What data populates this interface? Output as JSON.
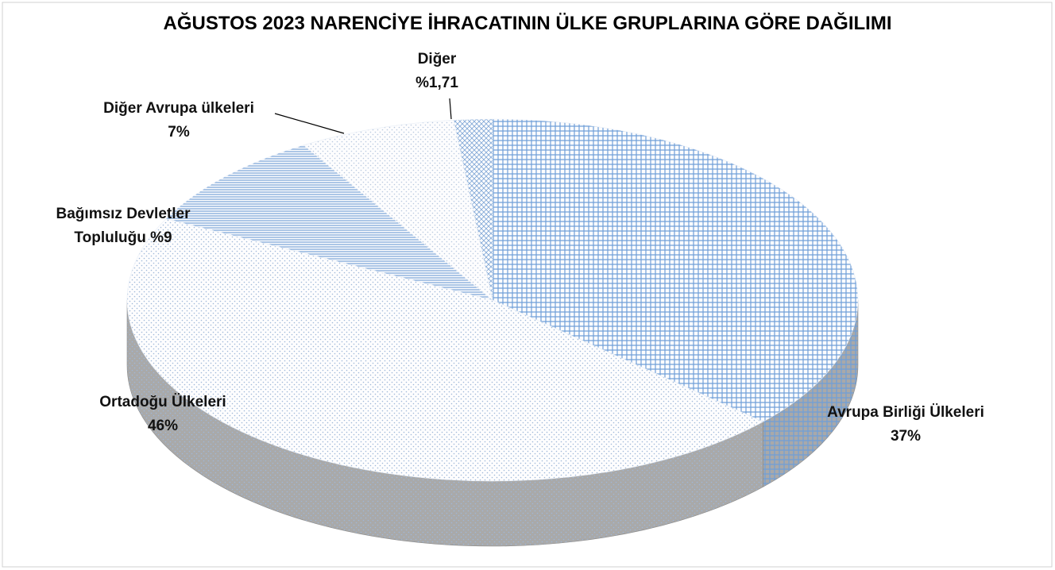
{
  "chart_data": {
    "type": "pie",
    "title": "AĞUSTOS 2023 NARENCİYE İHRACATININ ÜLKE GRUPLARINA GÖRE DAĞILIMI",
    "categories": [
      "Avrupa Birliği Ülkeleri",
      "Ortadoğu Ülkeleri",
      "Bağımsız Devletler Topluluğu",
      "Diğer Avrupa ülkeleri",
      "Diğer"
    ],
    "values": [
      37,
      46,
      9,
      7,
      1.71
    ],
    "value_labels": [
      "37%",
      "46%",
      "%9",
      "7%",
      "%1,71"
    ],
    "colors": [
      "#6f9fd8",
      "#9fb8d8",
      "#5b8fcf",
      "#b9c9de",
      "#7fa6d6"
    ]
  }
}
